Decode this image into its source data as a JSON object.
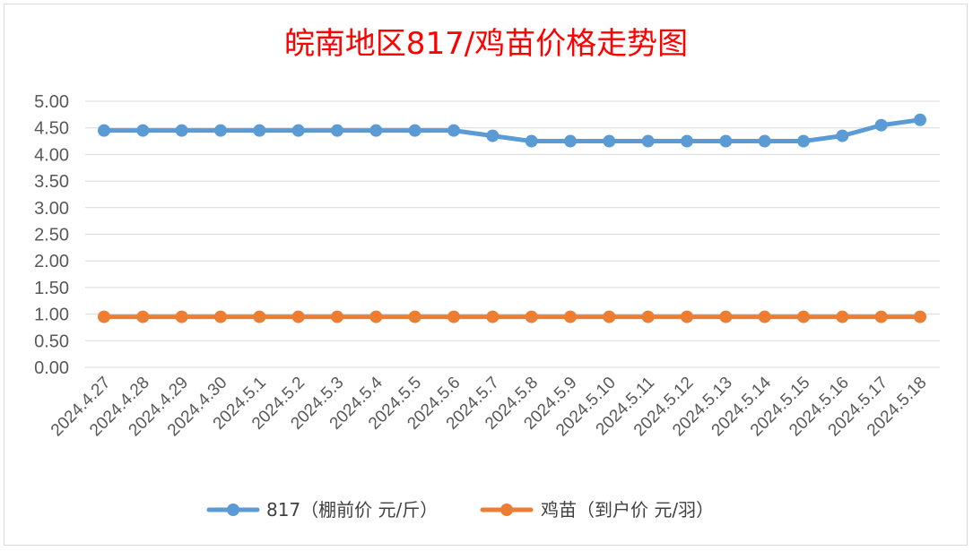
{
  "chart_data": {
    "type": "line",
    "title": "皖南地区817/鸡苗价格走势图",
    "xlabel": "",
    "ylabel": "",
    "ylim": [
      0,
      5
    ],
    "ytick_step": 0.5,
    "ytick_labels": [
      "0.00",
      "0.50",
      "1.00",
      "1.50",
      "2.00",
      "2.50",
      "3.00",
      "3.50",
      "4.00",
      "4.50",
      "5.00"
    ],
    "grid": true,
    "legend_position": "bottom",
    "categories": [
      "2024.4.27",
      "2024.4.28",
      "2024.4.29",
      "2024.4.30",
      "2024.5.1",
      "2024.5.2",
      "2024.5.3",
      "2024.5.4",
      "2024.5.5",
      "2024.5.6",
      "2024.5.7",
      "2024.5.8",
      "2024.5.9",
      "2024.5.10",
      "2024.5.11",
      "2024.5.12",
      "2024.5.13",
      "2024.5.14",
      "2024.5.15",
      "2024.5.16",
      "2024.5.17",
      "2024.5.18"
    ],
    "series": [
      {
        "name": "817（棚前价 元/斤）",
        "color": "#5b9bd5",
        "values": [
          4.45,
          4.45,
          4.45,
          4.45,
          4.45,
          4.45,
          4.45,
          4.45,
          4.45,
          4.45,
          4.35,
          4.25,
          4.25,
          4.25,
          4.25,
          4.25,
          4.25,
          4.25,
          4.25,
          4.35,
          4.55,
          4.65
        ]
      },
      {
        "name": "鸡苗（到户价 元/羽）",
        "color": "#ed7d31",
        "values": [
          0.95,
          0.95,
          0.95,
          0.95,
          0.95,
          0.95,
          0.95,
          0.95,
          0.95,
          0.95,
          0.95,
          0.95,
          0.95,
          0.95,
          0.95,
          0.95,
          0.95,
          0.95,
          0.95,
          0.95,
          0.95,
          0.95
        ]
      }
    ]
  }
}
